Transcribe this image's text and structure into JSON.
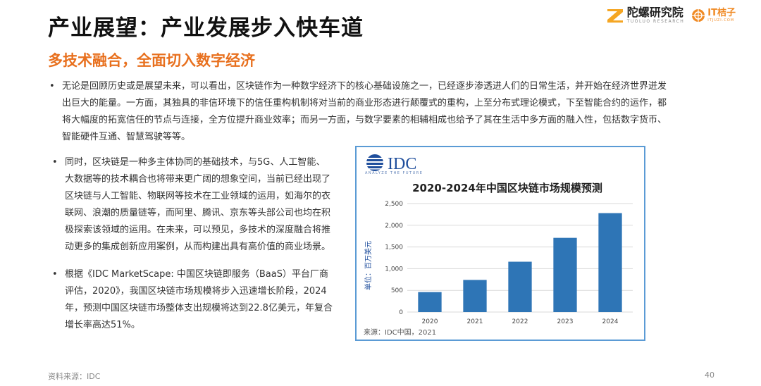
{
  "header": {
    "title": "产业展望：产业发展步入快车道",
    "logo_tuoluo_cn": "陀螺研究院",
    "logo_tuoluo_en": "TUOLUO RESEARCH",
    "logo_it_cn": "IT桔子",
    "logo_it_en": "ITJUZI.COM"
  },
  "subtitle": "多技术融合，全面切入数字经济",
  "bullets": [
    {
      "text": "无论是回顾历史或是展望未来，可以看出，区块链作为一种数字经济下的核心基础设施之一，已经逐步渗透进人们的日常生活，并开始在经济世界迸发出巨大的能量。一方面，其独具的非信环境下的信任重构机制将对当前的商业形态进行颠覆式的重构，上至分布式理论模式，下至智能合约的运作，都将大幅度的拓宽信任的节点与连接，全方位提升商业效率；而另一方面，与数字要素的相辅相成也给予了其在生活中多方面的融入性，包括数字货币、智能硬件互通、智慧驾驶等等。"
    },
    {
      "text": "同时，区块链是一种多主体协同的基础技术，与5G、人工智能、大数据等的技术耦合也将带来更广阔的想象空间，当前已经出现了区块链与人工智能、物联网等技术在工业领域的运用，如海尔的衣联网、浪潮的质量链等，而阿里、腾讯、京东等头部公司也均在积极探索该领域的运用。在未来，可以预见，多技术的深度融合将推动更多的集成创新应用案例，从而构建出具有高价值的商业场景。"
    },
    {
      "text": "根据《IDC MarketScape: 中国区块链即服务（BaaS）平台厂商评估，2020》，我国区块链市场规模将步入迅速增长阶段，2024年，预测中国区块链市场整体支出规模将达到22.8亿美元，年复合增长率高达51%。"
    }
  ],
  "bullet_symbol": "•",
  "chart_box": {
    "logo_text": "IDC",
    "logo_tagline": "ANALYZE THE FUTURE",
    "source": "来源：IDC中国，2021"
  },
  "chart_data": {
    "type": "bar",
    "title": "2020-2024年中国区块链市场规模预测",
    "ylabel": "单位：百万美元",
    "xlabel": "",
    "categories": [
      "2020",
      "2021",
      "2022",
      "2023",
      "2024"
    ],
    "values": [
      460,
      740,
      1160,
      1710,
      2280
    ],
    "ylim": [
      0,
      2500
    ],
    "yticks": [
      0,
      500,
      1000,
      1500,
      2000,
      2500
    ],
    "ytick_labels": [
      "0",
      "500",
      "1,000",
      "1,500",
      "2,000",
      "2,500"
    ],
    "grid": true,
    "legend": "none",
    "bar_color": "#2e75b6",
    "grid_color": "#d9d9d9"
  },
  "footer": {
    "source": "资料来源：IDC",
    "page": "40"
  }
}
